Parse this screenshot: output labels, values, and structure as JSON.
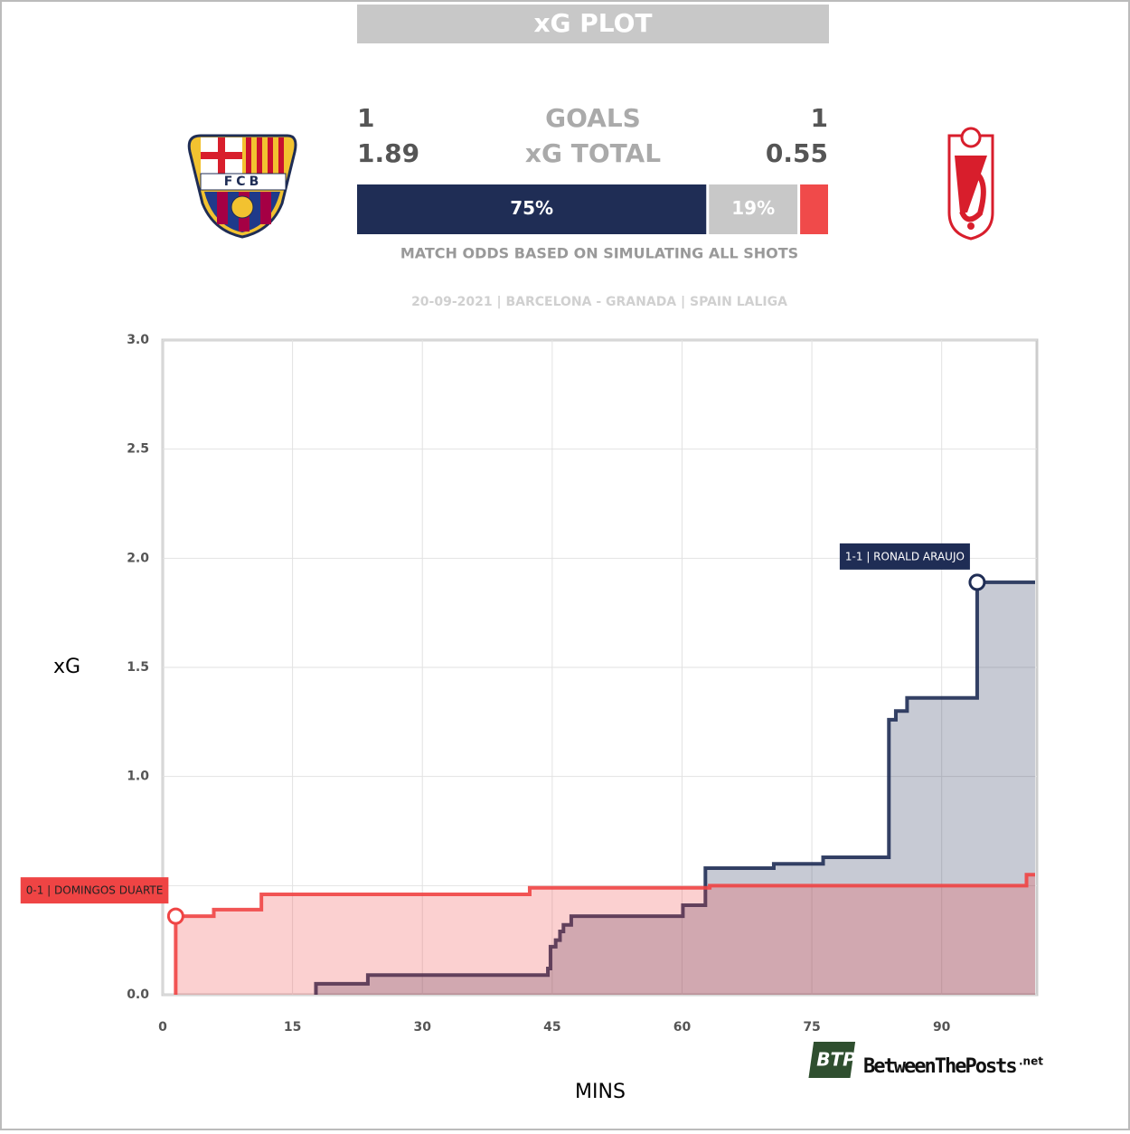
{
  "header": {
    "title": "xG PLOT",
    "home": {
      "goals": 1,
      "xg": 1.89,
      "crest_text": "FCB"
    },
    "away": {
      "goals": 1,
      "xg": 0.55
    },
    "goals_label": "GOALS",
    "xg_label": "xG TOTAL",
    "odds": {
      "values": [
        75,
        19,
        6
      ],
      "value_labels": [
        "75%",
        "19%",
        null
      ],
      "colors": [
        "#1f2d55",
        "#c8c8c8",
        "#f04a4a"
      ]
    },
    "odds_note": "MATCH ODDS BASED ON SIMULATING ALL SHOTS",
    "match_info": "20-09-2021 | BARCELONA - GRANADA | SPAIN LALIGA"
  },
  "chart_data": {
    "type": "step",
    "xlabel": "MINS",
    "ylabel": "xG",
    "xlim": [
      0,
      101
    ],
    "ylim": [
      0,
      3
    ],
    "xticks": [
      0,
      15,
      30,
      45,
      60,
      75,
      90
    ],
    "yticks": [
      {
        "value": 0,
        "label": "0.0"
      },
      0.5,
      {
        "value": 1,
        "label": "1.0"
      },
      1.5,
      {
        "value": 2,
        "label": "2.0"
      },
      2.5,
      {
        "value": 3,
        "label": "3.0"
      }
    ],
    "grid": true,
    "series": [
      {
        "name": "Barcelona",
        "color": "#1f2d55",
        "x": [
          17.7,
          23.7,
          44.5,
          44.8,
          45.4,
          45.9,
          46.3,
          47.2,
          60.1,
          62.7,
          70.6,
          76.3,
          83.9,
          84.7,
          86.0,
          94.1
        ],
        "values": [
          0.05,
          0.09,
          0.12,
          0.22,
          0.25,
          0.29,
          0.32,
          0.36,
          0.41,
          0.58,
          0.6,
          0.63,
          1.26,
          1.3,
          1.36,
          1.89
        ]
      },
      {
        "name": "Granada",
        "color": "#ef4444",
        "x": [
          1.5,
          5.9,
          11.4,
          42.4,
          63.2,
          99.8
        ],
        "values": [
          0.36,
          0.39,
          0.46,
          0.49,
          0.5,
          0.55
        ]
      }
    ],
    "annotations": [
      {
        "text": "1-1 | RONALD ARAUJO",
        "x": 94.1,
        "y": 1.89,
        "color": "#1f2d55"
      },
      {
        "text": "0-1 | DOMINGOS DUARTE",
        "x": 1.5,
        "y": 0.36,
        "color": "#ef4444"
      }
    ]
  },
  "brand": {
    "badge": "BTP",
    "name": "BetweenThePosts",
    "suffix": ".net"
  }
}
